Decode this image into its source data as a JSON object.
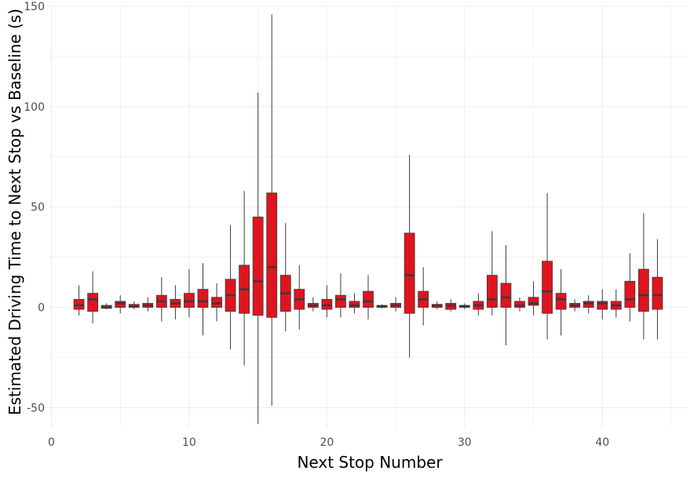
{
  "chart_data": {
    "type": "box",
    "title": "",
    "xlabel": "Next Stop Number",
    "ylabel": "Estimated Driving Time to Next Stop vs Baseline (s)",
    "xlim": [
      -0.2,
      46.2
    ],
    "ylim": [
      -60,
      150
    ],
    "x_ticks": [
      0,
      10,
      20,
      30,
      40
    ],
    "y_ticks": [
      -50,
      0,
      50,
      100,
      150
    ],
    "grid": true,
    "legend": "none",
    "colors": {
      "fill": "#e0141e",
      "edge": "#3a3a3a",
      "grid": "#ebebeb"
    },
    "boxes": [
      {
        "x": 2,
        "whisker_low": -4,
        "q1": -1,
        "median": 1,
        "q3": 4,
        "whisker_high": 11
      },
      {
        "x": 3,
        "whisker_low": -8,
        "q1": -2,
        "median": 4,
        "q3": 7,
        "whisker_high": 18
      },
      {
        "x": 4,
        "whisker_low": -1,
        "q1": -0.5,
        "median": 0,
        "q3": 1,
        "whisker_high": 2
      },
      {
        "x": 5,
        "whisker_low": -3,
        "q1": 0,
        "median": 2,
        "q3": 3,
        "whisker_high": 6
      },
      {
        "x": 6,
        "whisker_low": -1,
        "q1": 0,
        "median": 0.5,
        "q3": 1.5,
        "whisker_high": 3
      },
      {
        "x": 7,
        "whisker_low": -2,
        "q1": 0,
        "median": 1,
        "q3": 2,
        "whisker_high": 5
      },
      {
        "x": 8,
        "whisker_low": -7,
        "q1": 0,
        "median": 3,
        "q3": 6,
        "whisker_high": 15
      },
      {
        "x": 9,
        "whisker_low": -6,
        "q1": 0,
        "median": 2,
        "q3": 4,
        "whisker_high": 11
      },
      {
        "x": 10,
        "whisker_low": -5,
        "q1": 0,
        "median": 3,
        "q3": 7,
        "whisker_high": 19
      },
      {
        "x": 11,
        "whisker_low": -14,
        "q1": 0,
        "median": 3,
        "q3": 9,
        "whisker_high": 22
      },
      {
        "x": 12,
        "whisker_low": -7,
        "q1": 0,
        "median": 2,
        "q3": 5,
        "whisker_high": 12
      },
      {
        "x": 13,
        "whisker_low": -21,
        "q1": -2,
        "median": 6,
        "q3": 14,
        "whisker_high": 41
      },
      {
        "x": 14,
        "whisker_low": -29,
        "q1": -3,
        "median": 9,
        "q3": 21,
        "whisker_high": 58
      },
      {
        "x": 15,
        "whisker_low": -58,
        "q1": -4,
        "median": 13,
        "q3": 45,
        "whisker_high": 107
      },
      {
        "x": 16,
        "whisker_low": -49,
        "q1": -5,
        "median": 20,
        "q3": 57,
        "whisker_high": 146
      },
      {
        "x": 17,
        "whisker_low": -12,
        "q1": -2,
        "median": 7,
        "q3": 16,
        "whisker_high": 42
      },
      {
        "x": 18,
        "whisker_low": -11,
        "q1": -1,
        "median": 4,
        "q3": 9,
        "whisker_high": 21
      },
      {
        "x": 19,
        "whisker_low": -2,
        "q1": 0,
        "median": 1,
        "q3": 2,
        "whisker_high": 5
      },
      {
        "x": 20,
        "whisker_low": -5,
        "q1": -1,
        "median": 1,
        "q3": 4,
        "whisker_high": 11
      },
      {
        "x": 21,
        "whisker_low": -5,
        "q1": 0,
        "median": 4,
        "q3": 6,
        "whisker_high": 17
      },
      {
        "x": 22,
        "whisker_low": -3,
        "q1": 0,
        "median": 1,
        "q3": 3,
        "whisker_high": 7
      },
      {
        "x": 23,
        "whisker_low": -6,
        "q1": 0,
        "median": 3,
        "q3": 8,
        "whisker_high": 16
      },
      {
        "x": 24,
        "whisker_low": -0.5,
        "q1": 0,
        "median": 0.5,
        "q3": 1,
        "whisker_high": 1.5
      },
      {
        "x": 25,
        "whisker_low": -2,
        "q1": 0,
        "median": 1,
        "q3": 2,
        "whisker_high": 5
      },
      {
        "x": 26,
        "whisker_low": -25,
        "q1": -3,
        "median": 16,
        "q3": 37,
        "whisker_high": 76
      },
      {
        "x": 27,
        "whisker_low": -9,
        "q1": 0,
        "median": 4,
        "q3": 8,
        "whisker_high": 20
      },
      {
        "x": 28,
        "whisker_low": -1,
        "q1": 0,
        "median": 1,
        "q3": 1.5,
        "whisker_high": 3
      },
      {
        "x": 29,
        "whisker_low": -2,
        "q1": -1,
        "median": 1,
        "q3": 2,
        "whisker_high": 4
      },
      {
        "x": 30,
        "whisker_low": -1,
        "q1": 0,
        "median": 0.5,
        "q3": 1,
        "whisker_high": 2
      },
      {
        "x": 31,
        "whisker_low": -4,
        "q1": -1,
        "median": 1,
        "q3": 3,
        "whisker_high": 7
      },
      {
        "x": 32,
        "whisker_low": -4,
        "q1": 0,
        "median": 4,
        "q3": 16,
        "whisker_high": 38
      },
      {
        "x": 33,
        "whisker_low": -19,
        "q1": 0,
        "median": 5,
        "q3": 12,
        "whisker_high": 31
      },
      {
        "x": 34,
        "whisker_low": -2,
        "q1": 0,
        "median": 1,
        "q3": 3,
        "whisker_high": 5
      },
      {
        "x": 35,
        "whisker_low": -4,
        "q1": 1,
        "median": 2,
        "q3": 5,
        "whisker_high": 13
      },
      {
        "x": 36,
        "whisker_low": -16,
        "q1": -3,
        "median": 8,
        "q3": 23,
        "whisker_high": 57
      },
      {
        "x": 37,
        "whisker_low": -14,
        "q1": -1,
        "median": 4,
        "q3": 7,
        "whisker_high": 19
      },
      {
        "x": 38,
        "whisker_low": -2,
        "q1": 0,
        "median": 1,
        "q3": 2,
        "whisker_high": 4
      },
      {
        "x": 39,
        "whisker_low": -3,
        "q1": 0,
        "median": 2,
        "q3": 3,
        "whisker_high": 6
      },
      {
        "x": 40,
        "whisker_low": -6,
        "q1": -1,
        "median": 2,
        "q3": 3,
        "whisker_high": 9
      },
      {
        "x": 41,
        "whisker_low": -5,
        "q1": -1,
        "median": 1,
        "q3": 3,
        "whisker_high": 9
      },
      {
        "x": 42,
        "whisker_low": -7,
        "q1": 0,
        "median": 4,
        "q3": 13,
        "whisker_high": 27
      },
      {
        "x": 43,
        "whisker_low": -16,
        "q1": -2,
        "median": 6,
        "q3": 19,
        "whisker_high": 47
      },
      {
        "x": 44,
        "whisker_low": -16,
        "q1": -1,
        "median": 6,
        "q3": 15,
        "whisker_high": 34
      }
    ]
  }
}
